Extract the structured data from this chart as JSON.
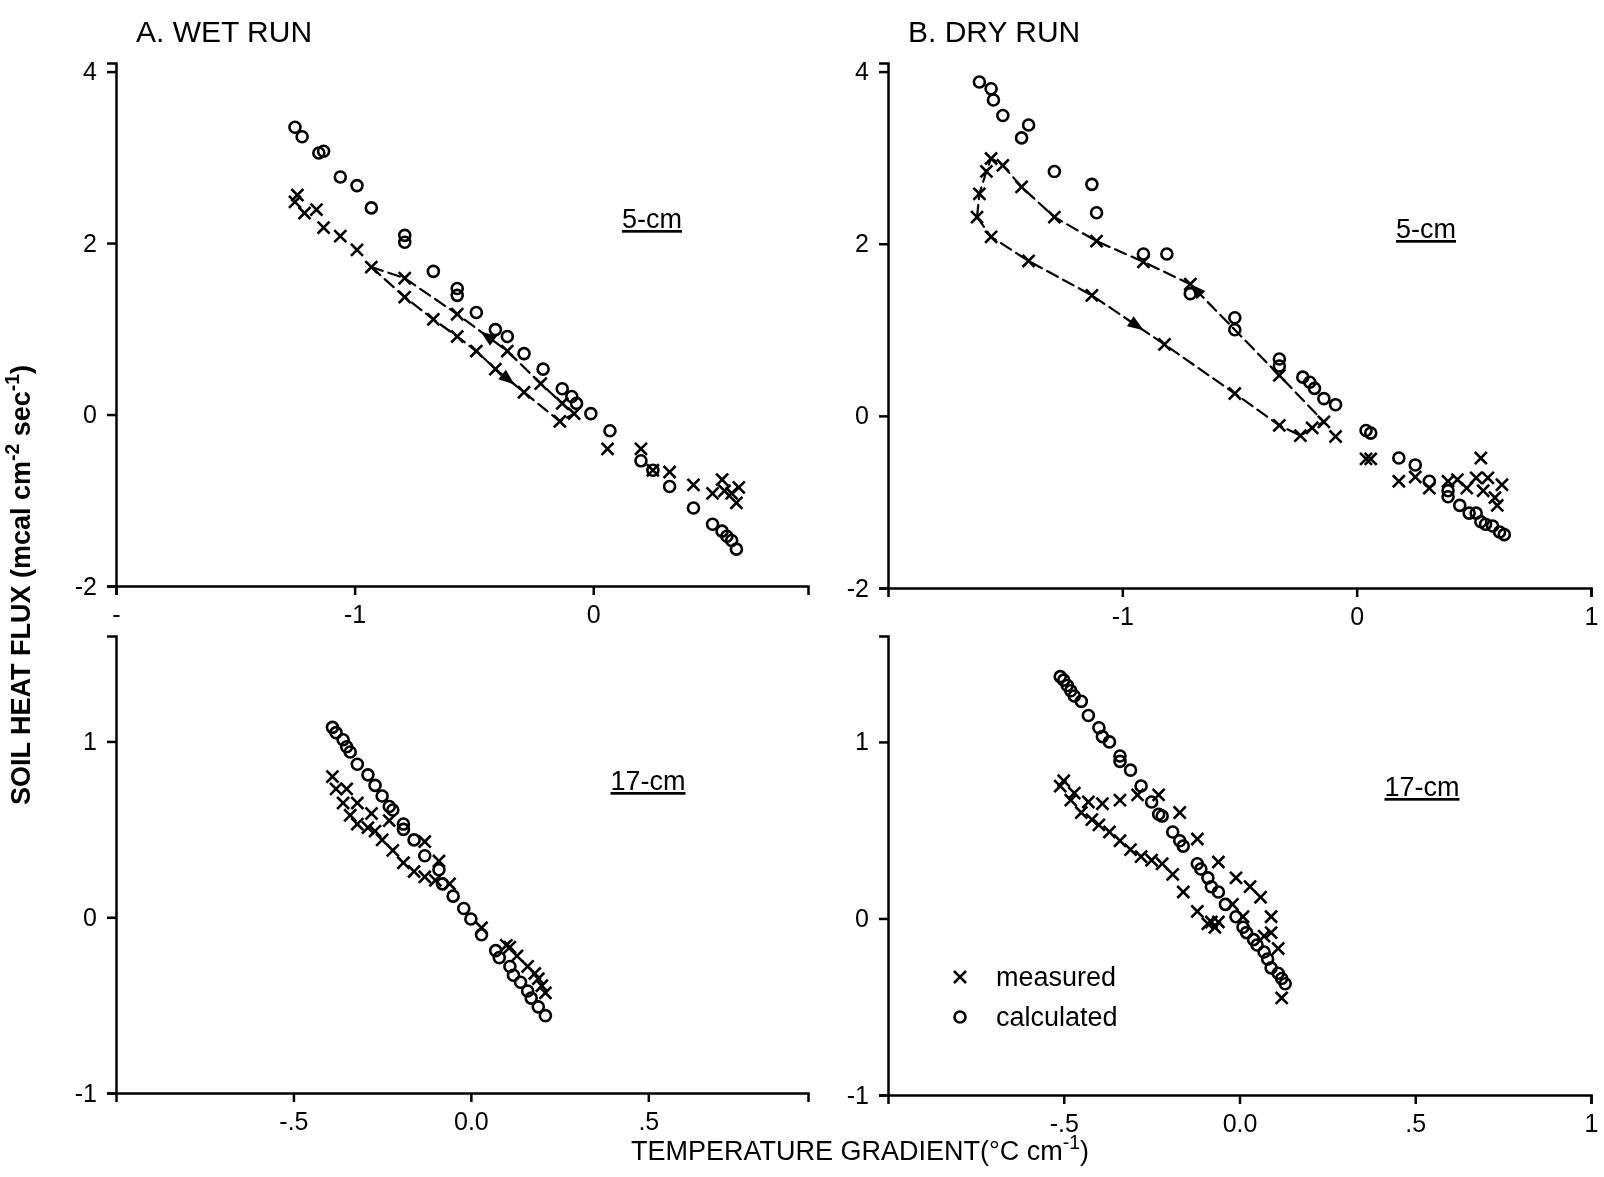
{
  "chart_data": [
    {
      "type": "scatter",
      "title": "A.  WET  RUN",
      "ylabel": "SOIL HEAT FLUX (mcal cm$^{-2}$ sec$^{-1}$)",
      "annotations": [
        "5-cm"
      ],
      "xlim": [
        -2,
        0.9
      ],
      "ylim": [
        -2,
        4.1
      ],
      "xticks": [
        {
          "value": -2,
          "label": "-"
        },
        -1,
        0
      ],
      "yticks": [
        -2,
        0,
        2,
        4
      ],
      "series": [
        {
          "type": "scatter",
          "marker": "cross",
          "color": "#000000",
          "x": [
            -1.24,
            -1.25,
            -1.21,
            -1.16,
            -1.13,
            -1.06,
            -0.99,
            -0.93,
            -0.79,
            -0.67,
            -0.57,
            -0.49,
            -0.41,
            -0.29,
            -0.14,
            -0.08,
            -0.13,
            -0.22,
            -0.36,
            -0.57,
            -0.79,
            0.06,
            0.2,
            0.25,
            0.32,
            0.42,
            0.5,
            0.54,
            0.55,
            0.58,
            0.6,
            0.61
          ],
          "values": [
            2.56,
            2.48,
            2.35,
            2.39,
            2.18,
            2.08,
            1.92,
            1.72,
            1.37,
            1.11,
            0.91,
            0.74,
            0.53,
            0.26,
            -0.08,
            0.01,
            0.13,
            0.36,
            0.74,
            1.17,
            1.59,
            -0.4,
            -0.4,
            -0.65,
            -0.67,
            -0.82,
            -0.92,
            -0.76,
            -0.89,
            -0.92,
            -1.03,
            -0.85
          ]
        },
        {
          "type": "scatter",
          "marker": "circle",
          "color": "#000000",
          "x": [
            -1.25,
            -1.22,
            -1.15,
            -1.13,
            -1.06,
            -0.99,
            -0.93,
            -0.79,
            -0.79,
            -0.67,
            -0.57,
            -0.57,
            -0.49,
            -0.41,
            -0.36,
            -0.29,
            -0.21,
            -0.13,
            -0.09,
            -0.07,
            -0.01,
            0.07,
            0.2,
            0.25,
            0.32,
            0.42,
            0.5,
            0.54,
            0.56,
            0.58,
            0.6
          ],
          "values": [
            3.35,
            3.24,
            3.05,
            3.07,
            2.77,
            2.67,
            2.41,
            2.09,
            2.01,
            1.67,
            1.47,
            1.39,
            1.19,
            0.99,
            0.91,
            0.71,
            0.53,
            0.3,
            0.21,
            0.13,
            0.01,
            -0.19,
            -0.54,
            -0.65,
            -0.84,
            -1.09,
            -1.28,
            -1.36,
            -1.42,
            -1.47,
            -1.57
          ]
        },
        {
          "type": "line",
          "marker": "none",
          "line_style": "dashed",
          "color": "#000000",
          "x": [
            -0.93,
            -0.79,
            -0.67,
            -0.57,
            -0.49,
            -0.41,
            -0.29,
            -0.14,
            -0.08
          ],
          "values": [
            1.72,
            1.37,
            1.11,
            0.91,
            0.74,
            0.53,
            0.26,
            -0.08,
            0.01
          ]
        },
        {
          "type": "line",
          "marker": "none",
          "line_style": "dashed",
          "color": "#000000",
          "x": [
            -0.93,
            -0.79,
            -0.57,
            -0.36,
            -0.22,
            -0.13,
            -0.08
          ],
          "values": [
            1.72,
            1.59,
            1.17,
            0.74,
            0.36,
            0.13,
            0.01
          ]
        }
      ]
    },
    {
      "type": "scatter",
      "title": "B.  DRY  RUN",
      "annotations": [
        "5-cm"
      ],
      "xlim": [
        -2,
        1
      ],
      "ylim": [
        -2,
        4.1
      ],
      "xticks": [
        -1,
        0,
        1
      ],
      "yticks": [
        -2,
        0,
        2,
        4
      ],
      "series": [
        {
          "type": "scatter",
          "marker": "cross",
          "color": "#000000",
          "x": [
            -1.56,
            -1.58,
            -1.61,
            -1.62,
            -1.56,
            -1.4,
            -1.13,
            -0.82,
            -0.52,
            -0.33,
            -0.24,
            -0.19,
            -0.14,
            -0.33,
            -0.71,
            -0.91,
            -1.11,
            -1.29,
            -1.43,
            -1.51,
            -0.09,
            0.04,
            0.06,
            0.18,
            0.25,
            0.31,
            0.39,
            0.43,
            0.47,
            0.51,
            0.53,
            0.54,
            0.56,
            0.59,
            0.6,
            0.62
          ],
          "values": [
            2.99,
            2.84,
            2.58,
            2.31,
            2.08,
            1.8,
            1.4,
            0.83,
            0.26,
            -0.11,
            -0.23,
            -0.14,
            -0.07,
            0.47,
            1.53,
            1.79,
            2.03,
            2.31,
            2.66,
            2.91,
            -0.24,
            -0.5,
            -0.5,
            -0.76,
            -0.71,
            -0.84,
            -0.76,
            -0.74,
            -0.84,
            -0.72,
            -0.49,
            -0.87,
            -0.72,
            -0.95,
            -1.04,
            -0.8
          ]
        },
        {
          "type": "scatter",
          "marker": "circle",
          "color": "#000000",
          "x": [
            -1.61,
            -1.56,
            -1.55,
            -1.51,
            -1.43,
            -1.4,
            -1.29,
            -1.13,
            -1.11,
            -0.91,
            -0.81,
            -0.71,
            -0.52,
            -0.52,
            -0.33,
            -0.33,
            -0.23,
            -0.2,
            -0.18,
            -0.14,
            -0.09,
            0.04,
            0.06,
            0.18,
            0.25,
            0.31,
            0.39,
            0.39,
            0.44,
            0.48,
            0.51,
            0.53,
            0.55,
            0.58,
            0.61,
            0.63
          ],
          "values": [
            3.88,
            3.8,
            3.67,
            3.49,
            3.23,
            3.38,
            2.84,
            2.69,
            2.36,
            1.88,
            1.88,
            1.42,
            1.14,
            1,
            0.66,
            0.58,
            0.45,
            0.39,
            0.32,
            0.2,
            0.13,
            -0.17,
            -0.2,
            -0.49,
            -0.57,
            -0.76,
            -0.87,
            -0.94,
            -1.04,
            -1.13,
            -1.13,
            -1.23,
            -1.26,
            -1.28,
            -1.35,
            -1.38
          ]
        },
        {
          "type": "line",
          "marker": "none",
          "line_style": "dashed",
          "color": "#000000",
          "x": [
            -1.62,
            -1.56,
            -1.4,
            -1.13,
            -0.82,
            -0.52,
            -0.33,
            -0.24,
            -0.19,
            -0.14
          ],
          "values": [
            2.31,
            2.08,
            1.8,
            1.4,
            0.83,
            0.26,
            -0.11,
            -0.23,
            -0.14,
            -0.07
          ]
        },
        {
          "type": "line",
          "marker": "none",
          "line_style": "dashed",
          "color": "#000000",
          "x": [
            -1.62,
            -1.61,
            -1.58,
            -1.56,
            -1.51,
            -1.43,
            -1.29,
            -1.11,
            -0.91,
            -0.71,
            -0.33,
            -0.14
          ],
          "values": [
            2.31,
            2.58,
            2.84,
            2.99,
            2.91,
            2.66,
            2.31,
            2.03,
            1.79,
            1.53,
            0.47,
            -0.07
          ]
        }
      ]
    },
    {
      "type": "scatter",
      "xlabel": "TEMPERATURE GRADIENT(°C cm$^{-1}$)",
      "annotations": [
        "17-cm"
      ],
      "xlim": [
        -1,
        0.95
      ],
      "ylim": [
        -1,
        1.6
      ],
      "xticks": [
        {
          "value": -0.5,
          "label": "-.5"
        },
        {
          "value": 0,
          "label": "0.0"
        },
        {
          "value": 0.5,
          "label": ".5"
        }
      ],
      "yticks": [
        -1,
        0,
        1
      ],
      "series": [
        {
          "type": "scatter",
          "marker": "cross",
          "color": "#000000",
          "x": [
            -0.39,
            -0.38,
            -0.35,
            -0.36,
            -0.32,
            -0.34,
            -0.28,
            -0.32,
            -0.29,
            -0.27,
            -0.23,
            -0.25,
            -0.22,
            -0.19,
            -0.16,
            -0.13,
            -0.13,
            -0.1,
            -0.09,
            -0.06,
            0.03,
            0.1,
            0.11,
            0.13,
            0.16,
            0.18,
            0.19,
            0.2,
            0.21
          ],
          "values": [
            0.8,
            0.73,
            0.73,
            0.65,
            0.65,
            0.58,
            0.59,
            0.53,
            0.51,
            0.49,
            0.55,
            0.44,
            0.38,
            0.31,
            0.26,
            0.43,
            0.23,
            0.21,
            0.32,
            0.19,
            -0.06,
            -0.16,
            -0.17,
            -0.22,
            -0.28,
            -0.32,
            -0.35,
            -0.39,
            -0.43
          ]
        },
        {
          "type": "scatter",
          "marker": "circle",
          "color": "#000000",
          "x": [
            -0.39,
            -0.38,
            -0.36,
            -0.35,
            -0.34,
            -0.32,
            -0.29,
            -0.27,
            -0.25,
            -0.23,
            -0.22,
            -0.19,
            -0.19,
            -0.16,
            -0.13,
            -0.09,
            -0.08,
            -0.05,
            -0.02,
            0,
            0.03,
            0.07,
            0.08,
            0.11,
            0.12,
            0.14,
            0.16,
            0.17,
            0.19,
            0.21
          ],
          "values": [
            1.08,
            1.05,
            1.01,
            0.97,
            0.94,
            0.87,
            0.81,
            0.75,
            0.69,
            0.63,
            0.61,
            0.53,
            0.5,
            0.44,
            0.35,
            0.27,
            0.19,
            0.12,
            0.05,
            -0.01,
            -0.1,
            -0.19,
            -0.23,
            -0.28,
            -0.33,
            -0.37,
            -0.42,
            -0.46,
            -0.51,
            -0.56
          ]
        }
      ]
    },
    {
      "type": "scatter",
      "annotations": [
        "17-cm"
      ],
      "xlim": [
        -1,
        1
      ],
      "ylim": [
        -1,
        1.6
      ],
      "xticks": [
        {
          "value": -0.5,
          "label": "-.5"
        },
        {
          "value": 0,
          "label": "0.0"
        },
        {
          "value": 0.5,
          "label": ".5"
        },
        1
      ],
      "yticks": [
        -1,
        0,
        1
      ],
      "legend": "bottom left",
      "series": [
        {
          "name": "measured",
          "type": "scatter",
          "marker": "cross",
          "color": "#000000",
          "x": [
            -0.5,
            -0.51,
            -0.47,
            -0.48,
            -0.43,
            -0.45,
            -0.39,
            -0.42,
            -0.4,
            -0.37,
            -0.34,
            -0.34,
            -0.31,
            -0.29,
            -0.28,
            -0.25,
            -0.23,
            -0.22,
            -0.19,
            -0.17,
            -0.16,
            -0.12,
            -0.12,
            -0.09,
            -0.08,
            -0.07,
            -0.06,
            -0.06,
            -0.02,
            -0.01,
            0.01,
            0.03,
            0.06,
            0.07,
            0.09,
            0.09,
            0.11,
            0.12
          ],
          "values": [
            0.78,
            0.75,
            0.71,
            0.67,
            0.66,
            0.6,
            0.65,
            0.56,
            0.53,
            0.49,
            0.44,
            0.67,
            0.39,
            0.7,
            0.35,
            0.33,
            0.7,
            0.31,
            0.25,
            0.6,
            0.15,
            0.45,
            0.04,
            -0.03,
            -0.02,
            -0.05,
            -0.02,
            0.32,
            0.08,
            0.23,
            0.01,
            0.18,
            0.12,
            -0.1,
            0.01,
            -0.08,
            -0.17,
            -0.45
          ]
        },
        {
          "name": "calculated",
          "type": "scatter",
          "marker": "circle",
          "color": "#000000",
          "x": [
            -0.51,
            -0.5,
            -0.49,
            -0.48,
            -0.47,
            -0.45,
            -0.43,
            -0.4,
            -0.39,
            -0.37,
            -0.34,
            -0.34,
            -0.31,
            -0.28,
            -0.25,
            -0.23,
            -0.22,
            -0.19,
            -0.17,
            -0.16,
            -0.12,
            -0.11,
            -0.09,
            -0.08,
            -0.06,
            -0.04,
            -0.01,
            0.01,
            0.02,
            0.04,
            0.05,
            0.07,
            0.08,
            0.09,
            0.11,
            0.12,
            0.13
          ],
          "values": [
            1.37,
            1.35,
            1.32,
            1.29,
            1.26,
            1.23,
            1.15,
            1.08,
            1.03,
            1,
            0.92,
            0.89,
            0.84,
            0.75,
            0.66,
            0.59,
            0.58,
            0.49,
            0.44,
            0.41,
            0.31,
            0.28,
            0.23,
            0.18,
            0.15,
            0.08,
            0.01,
            -0.05,
            -0.08,
            -0.12,
            -0.15,
            -0.19,
            -0.23,
            -0.28,
            -0.31,
            -0.34,
            -0.37
          ]
        }
      ]
    }
  ]
}
